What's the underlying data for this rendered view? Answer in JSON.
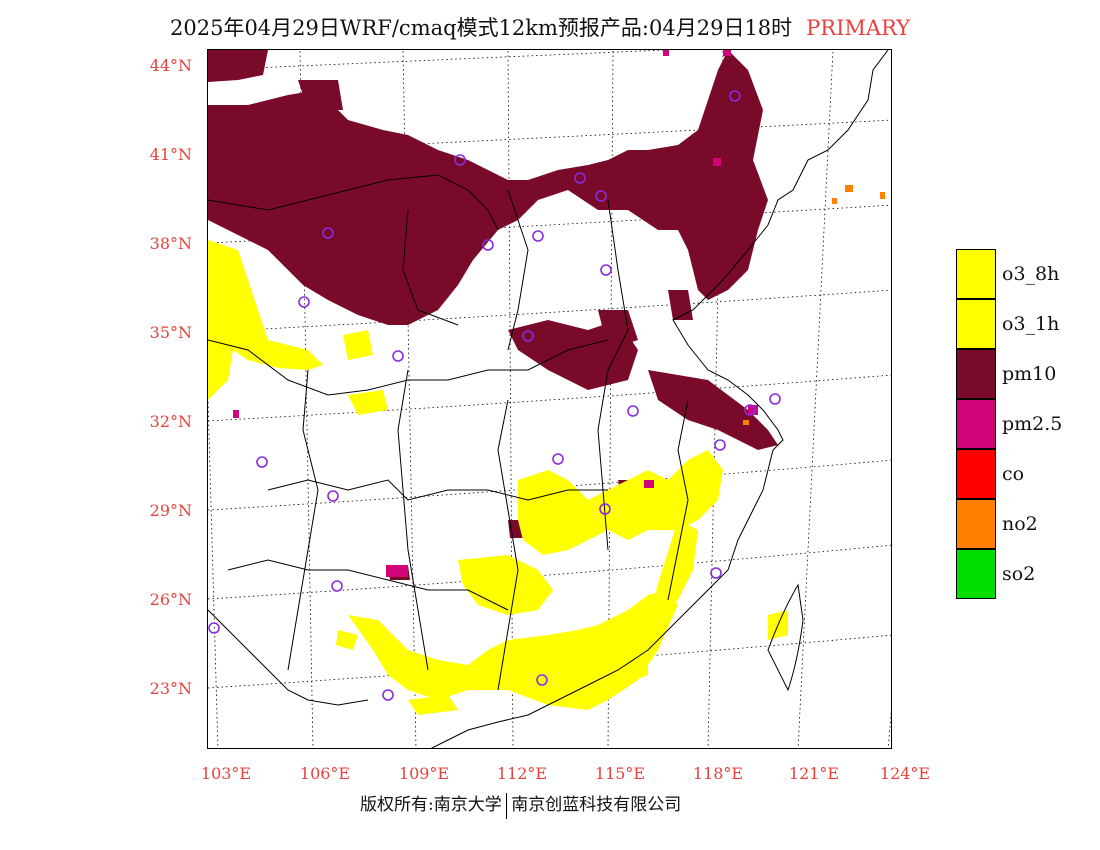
{
  "title": {
    "main": "2025年04月29日WRF/cmaq模式12km预报产品:04月29日18时",
    "type": "PRIMARY"
  },
  "lat_labels": [
    "44°N",
    "41°N",
    "38°N",
    "35°N",
    "32°N",
    "29°N",
    "26°N",
    "23°N"
  ],
  "lon_labels": [
    "103°E",
    "106°E",
    "109°E",
    "112°E",
    "115°E",
    "118°E",
    "121°E",
    "124°E"
  ],
  "legend": [
    {
      "label": "o3_8h",
      "color": "#ffff00"
    },
    {
      "label": "o3_1h",
      "color": "#ffff00"
    },
    {
      "label": "pm10",
      "color": "#7a0a2a"
    },
    {
      "label": "pm2.5",
      "color": "#d0057a"
    },
    {
      "label": "co",
      "color": "#ff0000"
    },
    {
      "label": "no2",
      "color": "#ff8000"
    },
    {
      "label": "so2",
      "color": "#00dd00"
    }
  ],
  "footer": {
    "left": "版权所有:南京大学",
    "right": "南京创蓝科技有限公司"
  },
  "colors": {
    "label_red": "#e8413c",
    "station_marker": "#8a2be2"
  }
}
